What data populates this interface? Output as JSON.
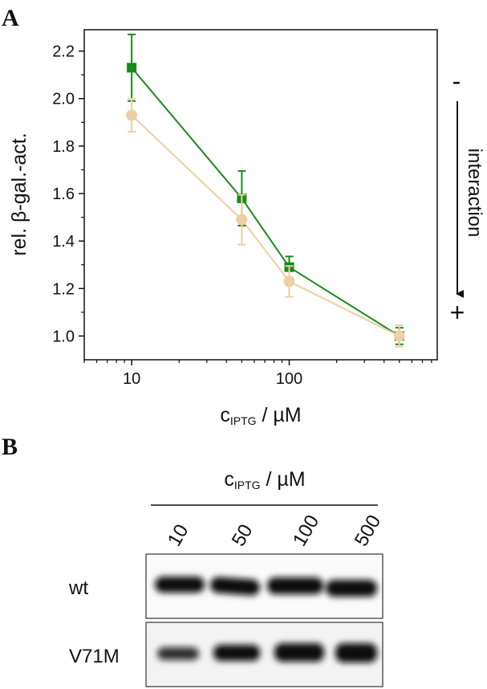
{
  "panels": {
    "a": "A",
    "b": "B"
  },
  "chart_data": {
    "type": "line",
    "x_label": {
      "main": "c",
      "sub": "IPTG",
      "rest": " / µM"
    },
    "y_label": "rel. β-gal.-act.",
    "annotation": {
      "top": "-",
      "middle": "interaction",
      "bottom": "+"
    },
    "x": [
      10,
      50,
      100,
      500
    ],
    "xlim": [
      5,
      870
    ],
    "xticks": [
      10,
      100
    ],
    "xminorticks": [
      5,
      6,
      7,
      8,
      9,
      20,
      30,
      40,
      50,
      60,
      70,
      80,
      90,
      200,
      300,
      400,
      500,
      600,
      700,
      800
    ],
    "xscale": "log",
    "ylim": [
      0.9,
      2.29
    ],
    "yticks": [
      {
        "value": 1,
        "label": "1.0"
      },
      1.2,
      1.4,
      1.6,
      1.8,
      {
        "value": 2,
        "label": "2.0"
      },
      2.2
    ],
    "yminorticks": [
      1.1,
      1.3,
      1.5,
      1.7,
      1.9,
      2.1
    ],
    "series": [
      {
        "color": "#1a8a1a",
        "marker": "square",
        "values": [
          2.13,
          1.58,
          1.29,
          1.0
        ],
        "errors": [
          0.14,
          0.115,
          0.045,
          0.035
        ]
      },
      {
        "color": "#edcfa3",
        "marker": "circle",
        "values": [
          1.93,
          1.49,
          1.23,
          1.0
        ],
        "errors": [
          0.07,
          0.105,
          0.065,
          0.045
        ]
      }
    ]
  },
  "blot": {
    "header": {
      "main": "c",
      "sub": "IPTG",
      "rest": " / µM"
    },
    "lanes": [
      "10",
      "50",
      "100",
      "500"
    ],
    "rows": [
      "wt",
      "V71M"
    ]
  }
}
